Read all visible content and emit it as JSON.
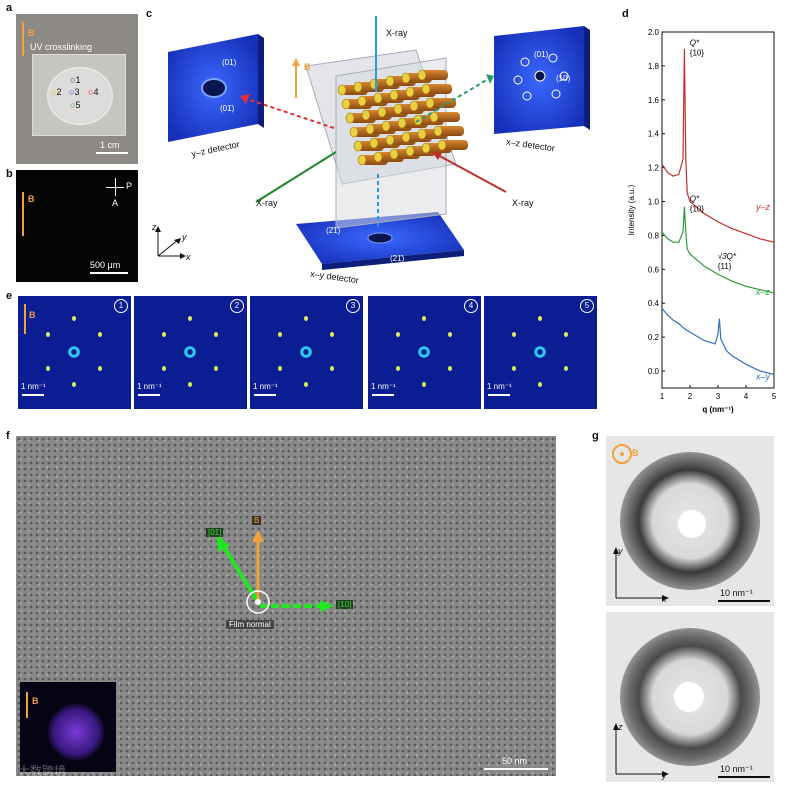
{
  "panels": {
    "a": {
      "label": "a",
      "text_uv": "UV crosslinking",
      "b_label": "B",
      "scale": "1 cm",
      "spots": [
        {
          "n": "1",
          "color": "#111111"
        },
        {
          "n": "2",
          "color": "#e8c020"
        },
        {
          "n": "3",
          "color": "#2040e0"
        },
        {
          "n": "4",
          "color": "#e02020"
        },
        {
          "n": "5",
          "color": "#20a040"
        }
      ]
    },
    "b": {
      "label": "b",
      "b_label": "B",
      "polarizer": "P",
      "analyzer": "A",
      "scale": "500 μm"
    },
    "c": {
      "label": "c",
      "xray_top": "X-ray",
      "xray_left": "X-ray",
      "xray_right": "X-ray",
      "b_label": "B",
      "yz_detector": "y–z detector",
      "xz_detector": "x–z detector",
      "xy_detector": "x–y detector",
      "yz_peak1": "(01)",
      "yz_peak2": "(01̄)",
      "xz_peak1": "(01)",
      "xz_peak2": "(10)",
      "xy_peak1": "(2̄1)",
      "xy_peak2": "(21̄)",
      "axis_z": "z",
      "axis_y": "y",
      "axis_x": "x"
    },
    "d": {
      "label": "d"
    },
    "e": {
      "label": "e",
      "b_label": "B",
      "scale": "1 nm⁻¹",
      "indices": [
        "1",
        "2",
        "3",
        "4",
        "5"
      ]
    },
    "f": {
      "label": "f",
      "b_label": "B",
      "label_01": "[01]",
      "label_10": "[10]",
      "film_normal": "Film normal",
      "scale": "50 nm",
      "inset_b": "B",
      "watermark": "大数跨境"
    },
    "g": {
      "label": "g",
      "b_label": "B",
      "top_axes": {
        "v": "y",
        "h": "x"
      },
      "bottom_axes": {
        "v": "z",
        "h": "y"
      },
      "scale_top": "10 nm⁻¹",
      "scale_bottom": "10 nm⁻¹"
    }
  },
  "chart_data": {
    "type": "line",
    "xlabel": "q (nm⁻¹)",
    "ylabel": "Intensity (a.u.)",
    "xlim": [
      1,
      5
    ],
    "ylim": [
      -0.1,
      2.0
    ],
    "xticks": [
      "1",
      "2",
      "3",
      "4",
      "5"
    ],
    "yticks": [
      "0.0",
      "0.2",
      "0.4",
      "0.6",
      "0.8",
      "1.0",
      "1.2",
      "1.4",
      "1.6",
      "1.8",
      "2.0"
    ],
    "series": [
      {
        "name": "y–z",
        "color": "#c0302a",
        "x": [
          1.0,
          1.2,
          1.4,
          1.6,
          1.75,
          1.8,
          1.85,
          1.9,
          2.0,
          2.5,
          3.0,
          3.5,
          4.0,
          4.5,
          5.0
        ],
        "y": [
          1.22,
          1.17,
          1.15,
          1.16,
          1.25,
          1.9,
          1.25,
          1.05,
          1.0,
          0.93,
          0.88,
          0.84,
          0.81,
          0.78,
          0.76
        ]
      },
      {
        "name": "x–z",
        "color": "#2a9a3a",
        "x": [
          1.0,
          1.2,
          1.4,
          1.6,
          1.75,
          1.8,
          1.85,
          1.9,
          2.0,
          2.5,
          3.0,
          3.5,
          4.0,
          4.5,
          5.0
        ],
        "y": [
          0.82,
          0.78,
          0.76,
          0.76,
          0.82,
          0.97,
          0.82,
          0.72,
          0.69,
          0.62,
          0.57,
          0.53,
          0.5,
          0.48,
          0.46
        ]
      },
      {
        "name": "x–y",
        "color": "#3070c0",
        "x": [
          1.0,
          1.2,
          1.4,
          1.6,
          1.8,
          2.0,
          2.5,
          2.9,
          3.0,
          3.05,
          3.1,
          3.3,
          3.5,
          4.0,
          4.5,
          5.0
        ],
        "y": [
          0.37,
          0.33,
          0.3,
          0.28,
          0.25,
          0.23,
          0.18,
          0.16,
          0.22,
          0.31,
          0.19,
          0.12,
          0.09,
          0.04,
          0.0,
          -0.02
        ]
      }
    ],
    "annotations": [
      {
        "text": "Q*",
        "sub": "{10}",
        "series": "y–z"
      },
      {
        "text": "Q*",
        "sub": "{10}",
        "series": "x–z"
      },
      {
        "text": "√3Q*",
        "sub": "{11}",
        "series": "x–y"
      }
    ]
  }
}
